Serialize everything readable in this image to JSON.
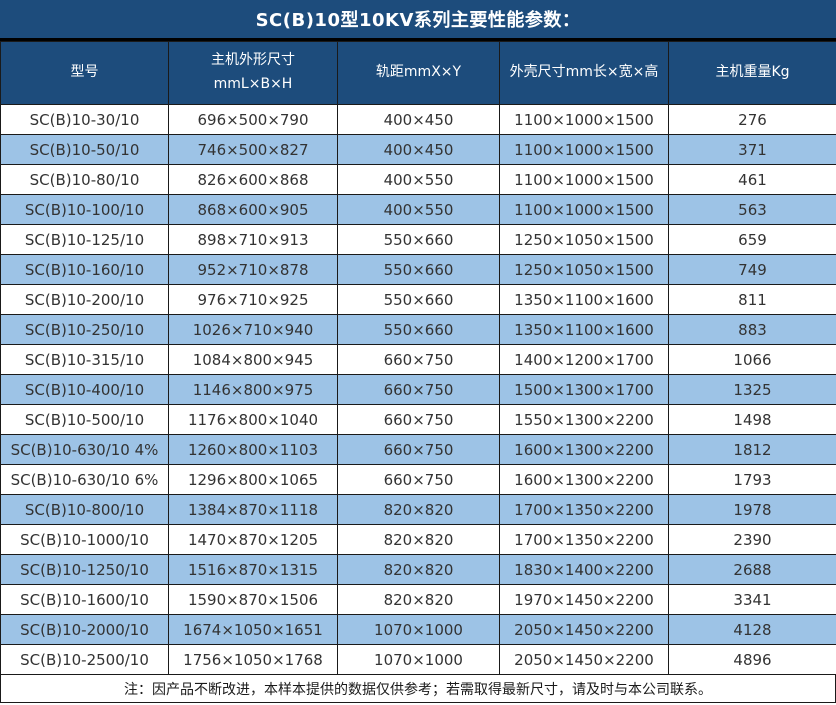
{
  "title": "SC(B)10型10KV系列主要性能参数：",
  "table": {
    "headers": [
      "型号",
      "主机外形尺寸\nmmL×B×H",
      "轨距mmX×Y",
      "外壳尺寸mm长×宽×高",
      "主机重量Kg"
    ],
    "rows": [
      [
        "SC(B)10-30/10",
        "696×500×790",
        "400×450",
        "1100×1000×1500",
        "276"
      ],
      [
        "SC(B)10-50/10",
        "746×500×827",
        "400×450",
        "1100×1000×1500",
        "371"
      ],
      [
        "SC(B)10-80/10",
        "826×600×868",
        "400×550",
        "1100×1000×1500",
        "461"
      ],
      [
        "SC(B)10-100/10",
        "868×600×905",
        "400×550",
        "1100×1000×1500",
        "563"
      ],
      [
        "SC(B)10-125/10",
        "898×710×913",
        "550×660",
        "1250×1050×1500",
        "659"
      ],
      [
        "SC(B)10-160/10",
        "952×710×878",
        "550×660",
        "1250×1050×1500",
        "749"
      ],
      [
        "SC(B)10-200/10",
        "976×710×925",
        "550×660",
        "1350×1100×1600",
        "811"
      ],
      [
        "SC(B)10-250/10",
        "1026×710×940",
        "550×660",
        "1350×1100×1600",
        "883"
      ],
      [
        "SC(B)10-315/10",
        "1084×800×945",
        "660×750",
        "1400×1200×1700",
        "1066"
      ],
      [
        "SC(B)10-400/10",
        "1146×800×975",
        "660×750",
        "1500×1300×1700",
        "1325"
      ],
      [
        "SC(B)10-500/10",
        "1176×800×1040",
        "660×750",
        "1550×1300×2200",
        "1498"
      ],
      [
        "SC(B)10-630/10 4%",
        "1260×800×1103",
        "660×750",
        "1600×1300×2200",
        "1812"
      ],
      [
        "SC(B)10-630/10 6%",
        "1296×800×1065",
        "660×750",
        "1600×1300×2200",
        "1793"
      ],
      [
        "SC(B)10-800/10",
        "1384×870×1118",
        "820×820",
        "1700×1350×2200",
        "1978"
      ],
      [
        "SC(B)10-1000/10",
        "1470×870×1205",
        "820×820",
        "1700×1350×2200",
        "2390"
      ],
      [
        "SC(B)10-1250/10",
        "1516×870×1315",
        "820×820",
        "1830×1400×2200",
        "2688"
      ],
      [
        "SC(B)10-1600/10",
        "1590×870×1506",
        "820×820",
        "1970×1450×2200",
        "3341"
      ],
      [
        "SC(B)10-2000/10",
        "1674×1050×1651",
        "1070×1000",
        "2050×1450×2200",
        "4128"
      ],
      [
        "SC(B)10-2500/10",
        "1756×1050×1768",
        "1070×1000",
        "2050×1450×2200",
        "4896"
      ]
    ]
  },
  "footer_note": "注：因产品不断改进，本样本提供的数据仅供参考；若需取得最新尺寸，请及时与本公司联系。",
  "colors": {
    "header_bg": "#1d4c7c",
    "row_alt_bg": "#9dc3e6",
    "row_bg": "#ffffff",
    "border": "#1a1a1a",
    "header_text": "#ffffff",
    "cell_text": "#333333"
  }
}
